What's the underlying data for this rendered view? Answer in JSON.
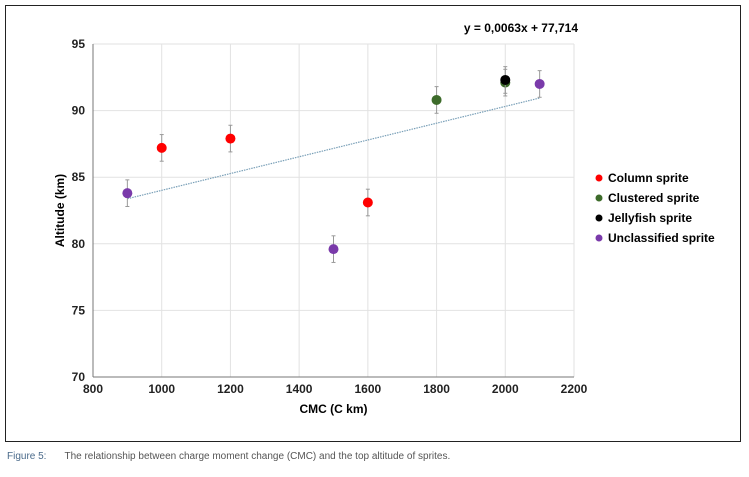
{
  "chart_data": {
    "type": "scatter",
    "xlabel": "CMC (C km)",
    "ylabel": "Altitude (km)",
    "xlim": [
      800,
      2200
    ],
    "ylim": [
      70,
      95
    ],
    "xticks": [
      800,
      1000,
      1200,
      1400,
      1600,
      1800,
      2000,
      2200
    ],
    "yticks": [
      70,
      75,
      80,
      85,
      90,
      95
    ],
    "grid": true,
    "legend_position": "right",
    "trendline": {
      "label": "y = 0,0063x + 77,714",
      "slope": 0.0063,
      "intercept": 77.714,
      "x_range": [
        900,
        2100
      ],
      "color": "#7aa0b8"
    },
    "error": 1.0,
    "series": [
      {
        "name": "Column sprite",
        "color": "#ff0000",
        "points": [
          [
            1000,
            87.2
          ],
          [
            1200,
            87.9
          ],
          [
            1600,
            83.1
          ]
        ]
      },
      {
        "name": "Clustered sprite",
        "color": "#3d6b2a",
        "points": [
          [
            1800,
            90.8
          ],
          [
            2000,
            92.1
          ]
        ]
      },
      {
        "name": "Jellyfish sprite",
        "color": "#000000",
        "points": [
          [
            2000,
            92.3
          ]
        ]
      },
      {
        "name": "Unclassified sprite",
        "color": "#7a3aaa",
        "points": [
          [
            900,
            83.8
          ],
          [
            1500,
            79.6
          ],
          [
            2100,
            92.0
          ]
        ]
      }
    ]
  },
  "caption": {
    "label": "Figure 5:",
    "text": "The relationship between charge moment change (CMC) and the top altitude of sprites."
  }
}
